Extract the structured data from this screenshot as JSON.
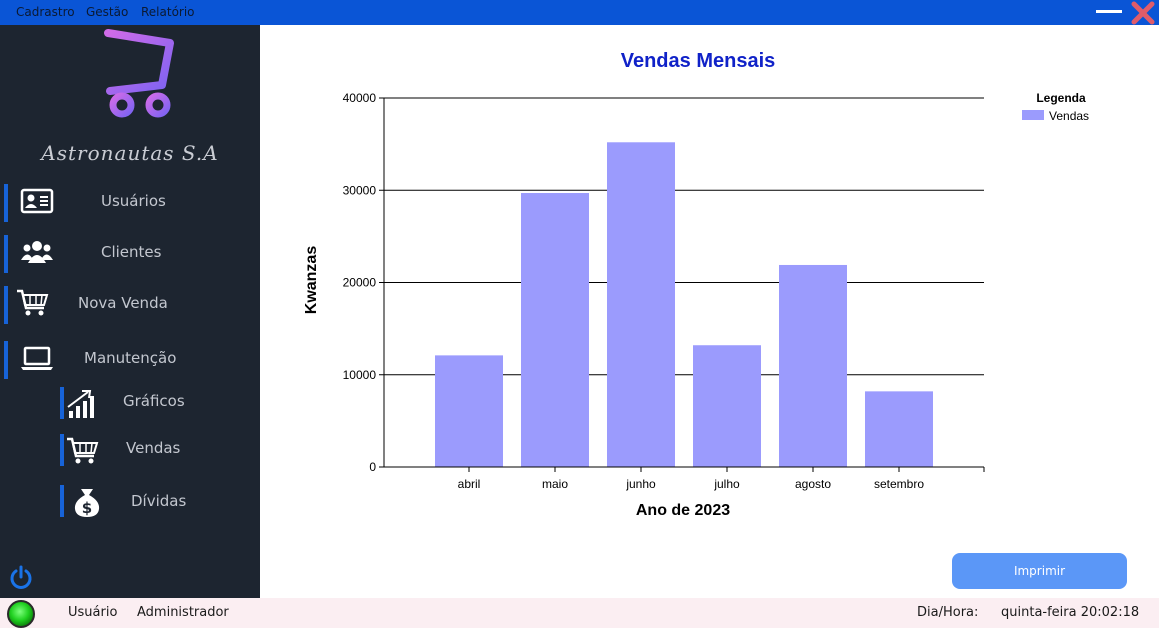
{
  "menu": {
    "items": [
      "Cadrastro",
      "Gestão",
      "Relatório"
    ]
  },
  "sidebar": {
    "company": "Astronautas S.A",
    "items": [
      {
        "label": "Usuários",
        "icon": "user-card-icon"
      },
      {
        "label": "Clientes",
        "icon": "users-icon"
      },
      {
        "label": "Nova Venda",
        "icon": "cart-icon"
      },
      {
        "label": "Manutenção",
        "icon": "laptop-icon"
      }
    ],
    "subitems": [
      {
        "label": "Gráficos",
        "icon": "chart-up-icon"
      },
      {
        "label": "Vendas",
        "icon": "cart-icon"
      },
      {
        "label": "Dívidas",
        "icon": "money-bag-icon"
      }
    ]
  },
  "chart_data": {
    "type": "bar",
    "title": "Vendas Mensais",
    "xlabel": "Ano de 2023",
    "ylabel": "Kwanzas",
    "categories": [
      "abril",
      "maio",
      "junho",
      "julho",
      "agosto",
      "setembro"
    ],
    "series": [
      {
        "name": "Vendas",
        "values": [
          12100,
          29700,
          35200,
          13200,
          21900,
          8200
        ]
      }
    ],
    "ylim": [
      0,
      40000
    ],
    "yticks": [
      0,
      10000,
      20000,
      30000,
      40000
    ],
    "legend_title": "Legenda",
    "legend_position": "top-right",
    "grid": true
  },
  "colors": {
    "bar": "#9b9bfd",
    "title": "#1022c8",
    "accent": "#1763d8",
    "sidebar_bg": "#1d2530",
    "button": "#5b97f7"
  },
  "actions": {
    "print_label": "Imprimir"
  },
  "status": {
    "user_label": "Usuário",
    "user_value": "Administrador",
    "datetime_label": "Dia/Hora:",
    "datetime_value": "quinta-feira 20:02:18"
  }
}
